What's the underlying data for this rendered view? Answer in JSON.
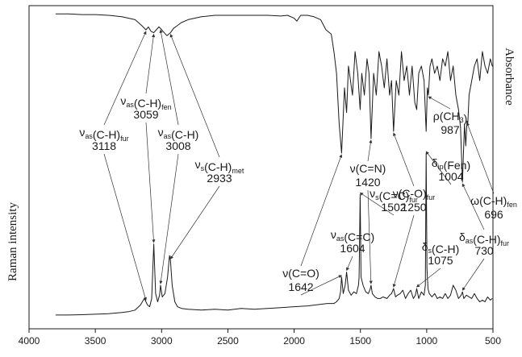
{
  "chart_data": {
    "type": "line",
    "x_axis": {
      "range": [
        4000,
        500
      ],
      "reversed": true,
      "ticks": [
        4000,
        3500,
        3000,
        2500,
        2000,
        1500,
        1000,
        500
      ],
      "tick_labels": [
        "4000",
        "3500",
        "3000",
        "2500",
        "2000",
        "1500",
        "1000",
        "500"
      ]
    },
    "ylabel_left": "Raman intensity",
    "ylabel_right": "Absorbance",
    "grid": false,
    "series": [
      {
        "kind": "IR",
        "color": "#1a1a1a",
        "x": [
          3800,
          3700,
          3600,
          3500,
          3400,
          3300,
          3200,
          3150,
          3118,
          3100,
          3080,
          3059,
          3040,
          3020,
          3008,
          2990,
          2960,
          2933,
          2910,
          2880,
          2850,
          2800,
          2700,
          2600,
          2500,
          2400,
          2300,
          2200,
          2100,
          2050,
          2000,
          1980,
          1950,
          1900,
          1850,
          1800,
          1760,
          1720,
          1700,
          1680,
          1660,
          1642,
          1620,
          1604,
          1590,
          1560,
          1540,
          1520,
          1502,
          1490,
          1470,
          1450,
          1435,
          1420,
          1400,
          1380,
          1360,
          1340,
          1320,
          1300,
          1280,
          1265,
          1250,
          1230,
          1210,
          1190,
          1170,
          1150,
          1130,
          1110,
          1090,
          1075,
          1060,
          1040,
          1020,
          1004,
          995,
          987,
          975,
          960,
          940,
          920,
          900,
          880,
          860,
          840,
          820,
          800,
          780,
          760,
          745,
          730,
          715,
          705,
          696,
          690,
          680,
          660,
          640,
          620,
          600,
          580,
          560,
          540,
          520,
          505,
          500
        ],
        "y": [
          0.04,
          0.04,
          0.045,
          0.045,
          0.05,
          0.06,
          0.08,
          0.12,
          0.15,
          0.13,
          0.16,
          0.17,
          0.15,
          0.13,
          0.14,
          0.16,
          0.19,
          0.17,
          0.14,
          0.12,
          0.1,
          0.08,
          0.06,
          0.05,
          0.05,
          0.05,
          0.05,
          0.05,
          0.055,
          0.05,
          0.07,
          0.09,
          0.05,
          0.05,
          0.06,
          0.08,
          0.15,
          0.18,
          0.3,
          0.45,
          0.8,
          1.0,
          0.55,
          0.72,
          0.4,
          0.6,
          0.3,
          0.45,
          0.7,
          0.45,
          0.6,
          0.35,
          0.45,
          0.9,
          0.45,
          0.6,
          0.3,
          0.4,
          0.55,
          0.35,
          0.6,
          0.5,
          0.85,
          0.5,
          0.6,
          0.3,
          0.5,
          0.4,
          0.6,
          0.4,
          0.65,
          0.7,
          0.45,
          0.4,
          0.5,
          0.85,
          0.55,
          0.6,
          0.4,
          0.35,
          0.45,
          0.4,
          0.5,
          0.35,
          0.4,
          0.3,
          0.5,
          0.4,
          0.6,
          0.7,
          0.82,
          1.2,
          0.8,
          0.95,
          0.78,
          0.8,
          0.6,
          0.5,
          0.4,
          0.35,
          0.5,
          0.3,
          0.4,
          0.45,
          0.35,
          0.4,
          0.4
        ]
      },
      {
        "kind": "Raman",
        "color": "#1a1a1a",
        "x": [
          3800,
          3700,
          3600,
          3500,
          3400,
          3300,
          3250,
          3200,
          3160,
          3130,
          3118,
          3105,
          3090,
          3075,
          3059,
          3045,
          3030,
          3015,
          3008,
          2995,
          2975,
          2955,
          2940,
          2933,
          2920,
          2900,
          2880,
          2850,
          2800,
          2700,
          2600,
          2500,
          2400,
          2300,
          2200,
          2100,
          2000,
          1900,
          1800,
          1750,
          1700,
          1680,
          1660,
          1650,
          1642,
          1630,
          1615,
          1604,
          1590,
          1570,
          1550,
          1530,
          1515,
          1510,
          1502,
          1495,
          1480,
          1460,
          1440,
          1425,
          1420,
          1410,
          1390,
          1370,
          1350,
          1330,
          1300,
          1280,
          1265,
          1250,
          1235,
          1220,
          1200,
          1180,
          1160,
          1140,
          1120,
          1100,
          1085,
          1075,
          1060,
          1040,
          1020,
          1010,
          1004,
          998,
          990,
          980,
          960,
          940,
          920,
          900,
          880,
          860,
          840,
          820,
          800,
          780,
          760,
          740,
          730,
          720,
          700,
          680,
          660,
          640,
          620,
          600,
          580,
          560,
          540,
          520,
          505
        ],
        "y": [
          0.02,
          0.02,
          0.022,
          0.025,
          0.028,
          0.035,
          0.04,
          0.05,
          0.08,
          0.12,
          0.1,
          0.08,
          0.07,
          0.12,
          0.45,
          0.15,
          0.1,
          0.14,
          0.2,
          0.13,
          0.15,
          0.25,
          0.38,
          0.35,
          0.2,
          0.1,
          0.07,
          0.06,
          0.055,
          0.05,
          0.055,
          0.05,
          0.06,
          0.055,
          0.06,
          0.065,
          0.07,
          0.075,
          0.085,
          0.09,
          0.09,
          0.1,
          0.12,
          0.16,
          0.25,
          0.15,
          0.2,
          0.28,
          0.17,
          0.14,
          0.16,
          0.15,
          0.2,
          0.25,
          0.75,
          0.25,
          0.2,
          0.16,
          0.15,
          0.18,
          0.2,
          0.15,
          0.13,
          0.12,
          0.12,
          0.13,
          0.12,
          0.14,
          0.15,
          0.18,
          0.13,
          0.14,
          0.15,
          0.17,
          0.12,
          0.15,
          0.17,
          0.12,
          0.14,
          0.18,
          0.12,
          0.16,
          0.14,
          0.2,
          1.0,
          0.3,
          0.18,
          0.15,
          0.13,
          0.15,
          0.12,
          0.13,
          0.12,
          0.15,
          0.12,
          0.14,
          0.2,
          0.17,
          0.12,
          0.14,
          0.16,
          0.12,
          0.14,
          0.13,
          0.12,
          0.15,
          0.12,
          0.1,
          0.11,
          0.1,
          0.13,
          0.11,
          0.12
        ]
      }
    ],
    "annotations": [
      {
        "id": "a3059",
        "main": "ν",
        "sub": "as",
        "rest": "(C-H)",
        "sub2": "fen",
        "value": "3059",
        "target_x": 3059,
        "target": "both"
      },
      {
        "id": "a3118",
        "main": "ν",
        "sub": "as",
        "rest": "(C-H)",
        "sub2": "fur",
        "value": "3118",
        "target_x": 3118,
        "target": "both"
      },
      {
        "id": "a3008",
        "main": "ν",
        "sub": "as",
        "rest": "(C-H)",
        "sub2": "",
        "value": "3008",
        "target_x": 3008,
        "target": "both"
      },
      {
        "id": "a2933",
        "main": "ν",
        "sub": "s",
        "rest": "(C-H)",
        "sub2": "met",
        "value": "2933",
        "target_x": 2933,
        "target": "both"
      },
      {
        "id": "a1642",
        "main": "ν",
        "sub": "",
        "rest": "(C=O)",
        "sub2": "",
        "value": "1642",
        "target_x": 1642,
        "target": "both"
      },
      {
        "id": "a1604",
        "main": "ν",
        "sub": "as",
        "rest": "(C=C)",
        "sub2": "",
        "value": "1604",
        "target_x": 1604,
        "target": "raman"
      },
      {
        "id": "a1502",
        "main": "ν",
        "sub": "s",
        "rest": "(C=C)",
        "sub2": "fur",
        "value": "1502",
        "target_x": 1502,
        "target": "raman"
      },
      {
        "id": "a1420",
        "main": "ν",
        "sub": "",
        "rest": "(C=N)",
        "sub2": "",
        "value": "1420",
        "target_x": 1420,
        "target": "both"
      },
      {
        "id": "a1250",
        "main": "ν",
        "sub": "",
        "rest": "(C-O)",
        "sub2": "fur",
        "value": "1250",
        "target_x": 1250,
        "target": "both"
      },
      {
        "id": "a1075",
        "main": "δ",
        "sub": "s",
        "rest": "(C-H)",
        "sub2": "",
        "value": "1075",
        "target_x": 1075,
        "target": "raman"
      },
      {
        "id": "a1004",
        "main": "δ",
        "sub": "ip",
        "rest": "(Fen)",
        "sub2": "",
        "value": "1004",
        "target_x": 1004,
        "target": "raman"
      },
      {
        "id": "a987",
        "main": "ρ",
        "sub": "",
        "rest": "(CH",
        "sub2": "3",
        "rest2": ")",
        "value": "987",
        "target_x": 987,
        "target": "ir"
      },
      {
        "id": "a730",
        "main": "δ",
        "sub": "as",
        "rest": "(C-H)",
        "sub2": "fur",
        "value": "730",
        "target_x": 730,
        "target": "both"
      },
      {
        "id": "a696",
        "main": "ω",
        "sub": "",
        "rest": "(C-H)",
        "sub2": "fen",
        "value": "696",
        "target_x": 696,
        "target": "ir"
      }
    ]
  }
}
